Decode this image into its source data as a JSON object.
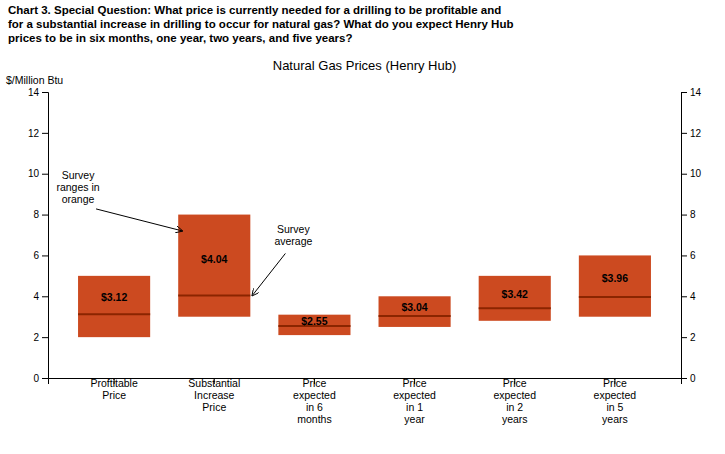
{
  "chart_data": {
    "type": "floating_bar",
    "title": "Natural Gas Prices (Henry Hub)",
    "subtitle": "Chart 3. Special Question: What price is currently needed for a drilling to be profitable and\nfor a substantial increase in drilling to occur for natural gas? What do you expect Henry Hub\nprices to be in six months, one year, two years, and five years?",
    "y_label": "$/Million Btu",
    "categories": [
      "Proftitable\nPrice",
      "Substantial\nIncrease\nPrice",
      "Price\nexpected\nin 6\nmonths",
      "Price\nexpected\nin 1\nyear",
      "Price\nexpected\nin 2\nyears",
      "Price\nexpected\nin 5\nyears"
    ],
    "ranges": {
      "low": [
        2.0,
        3.0,
        2.1,
        2.5,
        2.8,
        3.0
      ],
      "high": [
        5.0,
        8.0,
        3.1,
        4.0,
        5.0,
        6.0
      ],
      "color": "#cc4a20"
    },
    "averages": {
      "values": [
        3.12,
        4.04,
        2.55,
        3.04,
        3.42,
        3.96
      ],
      "value_labels": [
        "$3.12",
        "$4.04",
        "$2.55",
        "$3.04",
        "$3.42",
        "$3.96"
      ],
      "color": "#8b2500"
    },
    "data_labels": true,
    "annotations": [
      {
        "text": "Survey\nranges in\norange",
        "category": "Substantial\nIncrease\nPrice",
        "y": 7.2
      },
      {
        "text": "Survey\naverage",
        "category": "Substantial\nIncrease\nPrice",
        "y": 4.04
      }
    ],
    "ylim": [
      0,
      14
    ],
    "yticks": [
      0,
      2,
      4,
      6,
      8,
      10,
      12,
      14
    ],
    "y2lim": [
      0,
      14
    ],
    "y2ticks": [
      0,
      2,
      4,
      6,
      8,
      10,
      12,
      14
    ],
    "grid": false
  }
}
